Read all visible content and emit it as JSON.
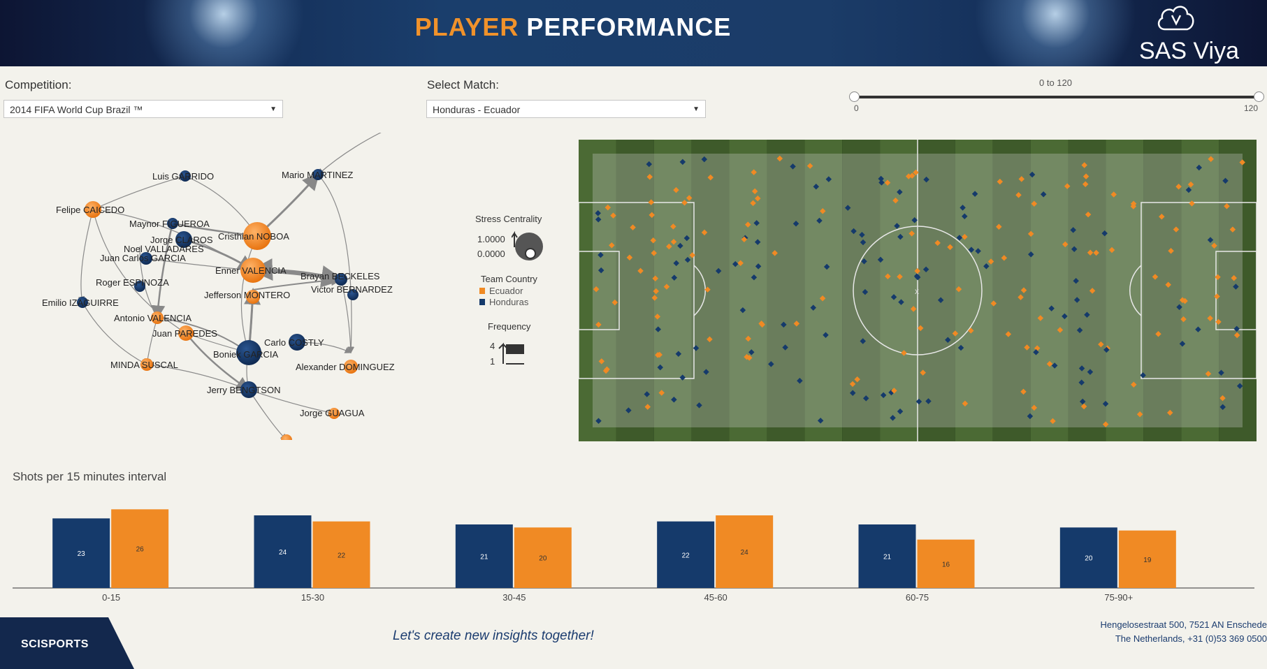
{
  "header": {
    "title_part1": "PLAYER",
    "title_part2": "PERFORMANCE",
    "brand": "SAS Viya",
    "brand_icon": "cloud-icon"
  },
  "controls": {
    "competition_label": "Competition:",
    "competition_value": "2014 FIFA World Cup Brazil ™",
    "match_label": "Select Match:",
    "match_value": "Honduras - Ecuador",
    "slider_range_label": "0 to 120",
    "slider_min": "0",
    "slider_max": "120"
  },
  "network": {
    "legend_stress_title": "Stress Centrality",
    "legend_stress_max": "1.0000",
    "legend_stress_min": "0.0000",
    "legend_team_title": "Team Country",
    "team_ecuador": "Ecuador",
    "team_honduras": "Honduras",
    "legend_freq_title": "Frequency",
    "legend_freq_max": "4",
    "legend_freq_min": "1",
    "colors": {
      "ecuador": "#f08a24",
      "honduras": "#153a6b"
    },
    "nodes": [
      {
        "name": "Luis GARRIDO",
        "team": "Honduras"
      },
      {
        "name": "Mario MARTINEZ",
        "team": "Honduras"
      },
      {
        "name": "Felipe CAICEDO",
        "team": "Ecuador"
      },
      {
        "name": "Maynor FIGUEROA",
        "team": "Honduras"
      },
      {
        "name": "Jorge CLAROS",
        "team": "Honduras"
      },
      {
        "name": "Cristhian NOBOA",
        "team": "Ecuador"
      },
      {
        "name": "Noel VALLADARES",
        "team": "Honduras"
      },
      {
        "name": "Juan Carlos GARCIA",
        "team": "Honduras"
      },
      {
        "name": "Enner VALENCIA",
        "team": "Ecuador"
      },
      {
        "name": "Brayan BECKELES",
        "team": "Honduras"
      },
      {
        "name": "Roger ESPINOZA",
        "team": "Honduras"
      },
      {
        "name": "Victor BERNARDEZ",
        "team": "Honduras"
      },
      {
        "name": "Jefferson MONTERO",
        "team": "Ecuador"
      },
      {
        "name": "Emilio IZAGUIRRE",
        "team": "Honduras"
      },
      {
        "name": "Antonio VALENCIA",
        "team": "Ecuador"
      },
      {
        "name": "Juan PAREDES",
        "team": "Ecuador"
      },
      {
        "name": "Carlo COSTLY",
        "team": "Honduras"
      },
      {
        "name": "Boniek GARCIA",
        "team": "Honduras"
      },
      {
        "name": "MINDA SUSCAL",
        "team": "Ecuador"
      },
      {
        "name": "Alexander DOMINGUEZ",
        "team": "Ecuador"
      },
      {
        "name": "Jerry BENGTSON",
        "team": "Honduras"
      },
      {
        "name": "Jorge GUAGUA",
        "team": "Ecuador"
      }
    ]
  },
  "chart_data": {
    "type": "bar",
    "title": "Shots per 15 minutes interval",
    "categories": [
      "0-15",
      "15-30",
      "30-45",
      "45-60",
      "60-75",
      "75-90+"
    ],
    "series": [
      {
        "name": "Honduras",
        "color": "#153a6b",
        "values": [
          23,
          24,
          21,
          22,
          21,
          20
        ]
      },
      {
        "name": "Ecuador",
        "color": "#f08a24",
        "values": [
          26,
          22,
          20,
          24,
          16,
          19
        ]
      }
    ],
    "ylim": [
      0,
      30
    ]
  },
  "footer": {
    "logo": "SCISPORTS",
    "tagline": "Let's create new insights together!",
    "address_line1": "Hengelosestraat 500, 7521 AN Enschede",
    "address_line2": "The Netherlands, +31 (0)53 369 0500"
  }
}
